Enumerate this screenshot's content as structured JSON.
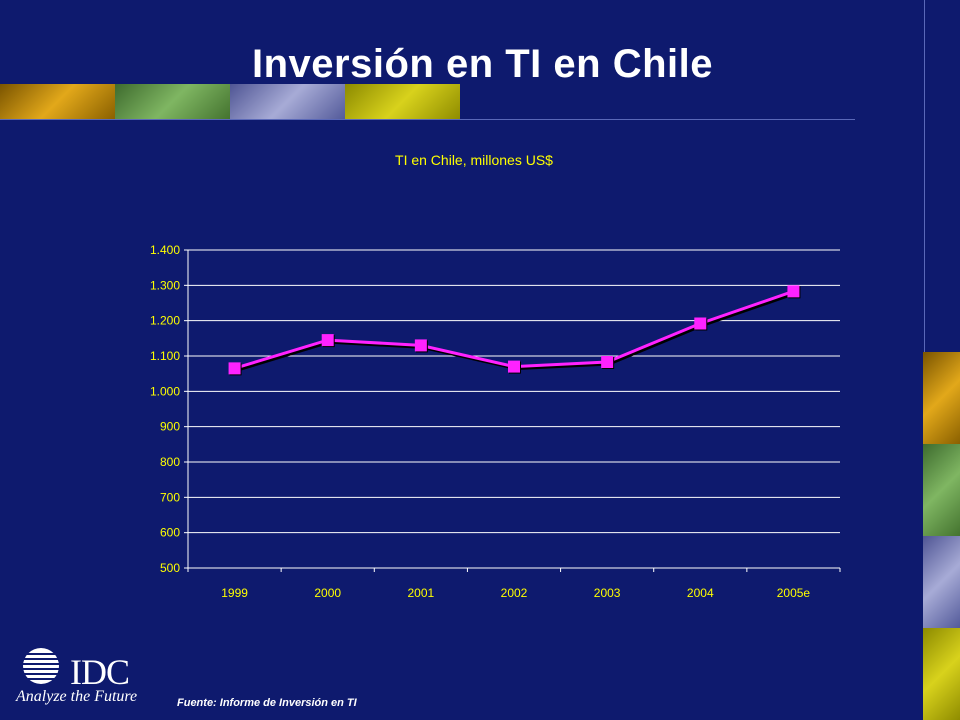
{
  "slide": {
    "title": "Inversión en TI en Chile",
    "source": "Fuente: Informe de Inversión en TI"
  },
  "logo": {
    "text": "IDC",
    "tagline": "Analyze the Future"
  },
  "colors": {
    "background": "#0e1a6e",
    "series": "#ff22ff",
    "axis_text": "#ffff00",
    "gridline": "#ffffff"
  },
  "chart_data": {
    "type": "line",
    "title": "TI en Chile, millones US$",
    "xlabel": "",
    "ylabel": "",
    "categories": [
      "1999",
      "2000",
      "2001",
      "2002",
      "2003",
      "2004",
      "2005e"
    ],
    "series": [
      {
        "values": [
          1065,
          1145,
          1130,
          1070,
          1083,
          1192,
          1283
        ]
      }
    ],
    "ylim": [
      500,
      1400
    ],
    "y_ticks": [
      500,
      600,
      700,
      800,
      900,
      1000,
      1100,
      1200,
      1300,
      1400
    ],
    "y_tick_labels": [
      "500",
      "600",
      "700",
      "800",
      "900",
      "1.000",
      "1.100",
      "1.200",
      "1.300",
      "1.400"
    ],
    "grid": true,
    "legend": "none",
    "marker": "square"
  }
}
